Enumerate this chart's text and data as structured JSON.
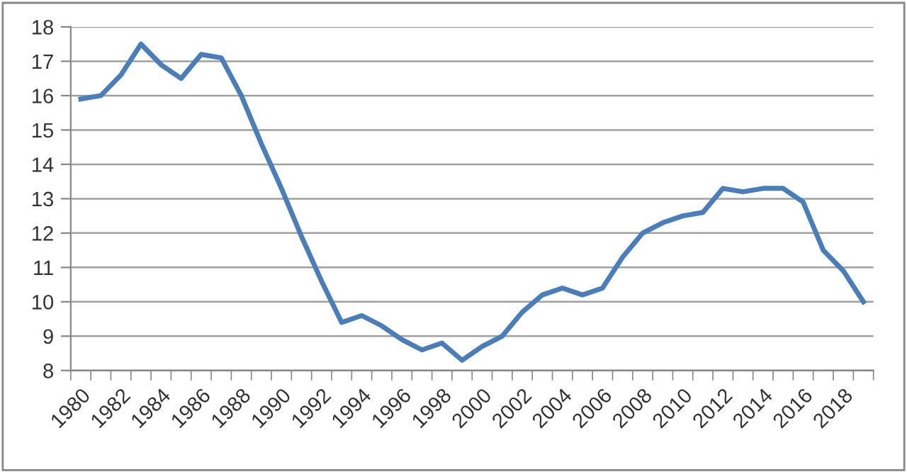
{
  "chart_data": {
    "type": "line",
    "categories": [
      "1980",
      null,
      "1982",
      null,
      "1984",
      null,
      "1986",
      null,
      "1988",
      null,
      "1990",
      null,
      "1992",
      null,
      "1994",
      null,
      "1996",
      null,
      "1998",
      null,
      "2000",
      null,
      "2002",
      null,
      "2004",
      null,
      "2006",
      null,
      "2008",
      null,
      "2010",
      null,
      "2012",
      null,
      "2014",
      null,
      "2016",
      null,
      "2018",
      null
    ],
    "series": [
      {
        "color": "#4a7ebb",
        "values": [
          15.9,
          16.0,
          16.6,
          17.5,
          16.9,
          16.5,
          17.2,
          17.1,
          16.0,
          14.6,
          13.3,
          11.9,
          10.6,
          9.4,
          9.6,
          9.3,
          8.9,
          8.6,
          8.8,
          8.3,
          8.7,
          9.0,
          9.7,
          10.2,
          10.4,
          10.2,
          10.4,
          11.3,
          12.0,
          12.3,
          12.5,
          12.6,
          13.3,
          13.2,
          13.3,
          13.3,
          12.9,
          11.5,
          10.9,
          10.0
        ]
      }
    ],
    "ylim": [
      8,
      18
    ],
    "yticks": [
      8,
      9,
      10,
      11,
      12,
      13,
      14,
      15,
      16,
      17,
      18
    ],
    "grid": "y",
    "legend": false,
    "marker": "none",
    "line_style": "solid"
  }
}
